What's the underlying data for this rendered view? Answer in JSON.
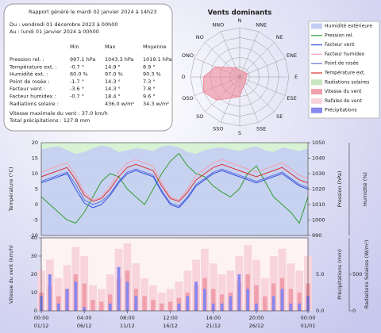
{
  "report": {
    "title": "Rapport généré le mardi 02 janvier 2024 à 14h23",
    "from": "Du : vendredi 01 décembre 2023 à 00h00",
    "to": "Au : lundi 01 janvier 2024 à 00h00",
    "columns": [
      "Min",
      "Max",
      "Moyenne"
    ],
    "rows": [
      [
        "Pression rel. :",
        "997.1 hPa",
        "1043.3 hPa",
        "1019.1 hPa"
      ],
      [
        "Température ext. :",
        "-0.7 °",
        "14.9 °",
        "8.9 °"
      ],
      [
        "Humidité ext. :",
        "60.0 %",
        "97.0 %",
        "90.3 %"
      ],
      [
        "Point de rosée :",
        "-1.7 °",
        "14.3 °",
        "7.3 °"
      ],
      [
        "Facteur vent :",
        "-3.6 °",
        "14.3 °",
        "7.8 °"
      ],
      [
        "Facteur humidex :",
        "-0.7 °",
        "18.4 °",
        "9.6 °"
      ],
      [
        "Radiations solaire :",
        null,
        "436.0 w/m²",
        "34.3 w/m²"
      ]
    ],
    "wind_max": "Vitesse maximale du vent : 37.0 km/h",
    "rain_total": "Total précipitations : 127.8 mm"
  },
  "chart_data": [
    {
      "type": "radar",
      "title": "Vents dominants",
      "categories": [
        "N",
        "NNE",
        "NE",
        "ENE",
        "E",
        "ESE",
        "SE",
        "SSE",
        "S",
        "SSO",
        "SO",
        "OSO",
        "O",
        "ONO",
        "NO",
        "NNO"
      ],
      "values": [
        2,
        2,
        2,
        2.5,
        2,
        2,
        2.5,
        3,
        6,
        7,
        10,
        12,
        11,
        8,
        4,
        3
      ],
      "color": "#f08090",
      "rlim": [
        0,
        15
      ],
      "rticks": [
        0,
        3,
        6,
        9,
        12,
        15
      ]
    },
    {
      "type": "line",
      "ylabel": "Température (°C)",
      "y2label": "Pression (hPa)",
      "y3label": "Humidité (%)",
      "ylim": [
        -10,
        20
      ],
      "yticks": [
        -10,
        -5,
        0,
        5,
        10,
        15,
        20
      ],
      "y2lim": [
        990,
        1050
      ],
      "y2ticks": [
        990,
        1000,
        1010,
        1020,
        1030,
        1040,
        1050
      ],
      "y3lim": [
        0,
        100
      ],
      "grid": true,
      "series": [
        {
          "name": "Humidité extérieure",
          "color": "#c4ccf4",
          "style": "area",
          "axis": "y3",
          "values": [
            93,
            95,
            96,
            92,
            88,
            90,
            94,
            97,
            95,
            90,
            92,
            94,
            93,
            91,
            96,
            97,
            95,
            90,
            88,
            92,
            94,
            95,
            93,
            91,
            94,
            96,
            92,
            90,
            95,
            93,
            91,
            94
          ]
        },
        {
          "name": "Pression rel.",
          "color": "#30a030",
          "axis": "y2",
          "values": [
            1015,
            1010,
            1005,
            1000,
            998,
            1005,
            1015,
            1025,
            1030,
            1028,
            1020,
            1015,
            1010,
            1020,
            1030,
            1038,
            1043,
            1035,
            1030,
            1028,
            1022,
            1018,
            1015,
            1020,
            1030,
            1035,
            1025,
            1015,
            1010,
            1005,
            998,
            1015
          ]
        },
        {
          "name": "Facteur vent",
          "color": "#3050e0",
          "values": [
            7,
            8,
            9,
            10,
            5,
            0.5,
            -1,
            0,
            3,
            7,
            10,
            11,
            10,
            9,
            4,
            0,
            -1,
            2,
            6,
            8,
            10,
            11,
            10,
            9,
            8,
            7,
            8,
            9,
            10,
            8,
            6,
            5
          ]
        },
        {
          "name": "Facteur humidex",
          "color": "#f4a0b0",
          "values": [
            10.5,
            11.5,
            12.5,
            13.5,
            9.5,
            4,
            1.5,
            2.5,
            6,
            10.5,
            13.5,
            14.5,
            13.5,
            12.5,
            7,
            2.5,
            1.5,
            5,
            9.5,
            11.5,
            13.5,
            14.5,
            13.5,
            12.5,
            11.5,
            10.5,
            11.5,
            12.5,
            13.5,
            11.5,
            9.5,
            8.5
          ]
        },
        {
          "name": "Point de rosée",
          "color": "#6070d8",
          "values": [
            7.5,
            8.5,
            9.5,
            10.5,
            6.5,
            1.5,
            0,
            1,
            3.5,
            7.5,
            10.5,
            11.5,
            10.5,
            9.5,
            4.5,
            0.5,
            -0.5,
            2.5,
            6.5,
            8.5,
            10.5,
            11.5,
            10.5,
            9.5,
            8.5,
            7.5,
            8.5,
            9.5,
            10.5,
            8.5,
            6.5,
            5.5
          ]
        },
        {
          "name": "Température ext.",
          "color": "#e03030",
          "values": [
            9,
            10,
            11,
            12,
            8,
            3,
            1,
            2,
            5,
            9,
            12,
            13,
            12,
            11,
            6,
            2,
            1,
            4,
            8,
            10,
            12,
            13,
            12,
            11,
            10,
            9,
            10,
            11,
            12,
            10,
            8,
            7
          ]
        }
      ]
    },
    {
      "type": "bar",
      "categories": [
        "01/12",
        null,
        null,
        null,
        null,
        "06/12",
        null,
        null,
        null,
        null,
        "11/12",
        null,
        null,
        null,
        null,
        "16/12",
        null,
        null,
        null,
        null,
        "21/12",
        null,
        null,
        null,
        null,
        "26/12",
        null,
        null,
        null,
        null,
        null,
        "01/01"
      ],
      "time_labels": [
        "00:00",
        "04:00",
        "08:00",
        "12:00",
        "16:00",
        "20:00",
        "00:00"
      ],
      "ylabel": "Vitesse du vent (km/h)",
      "y2label": "Précipitations (mm)",
      "y3label": "Radiations Solaires (W/m²)",
      "ylim": [
        0,
        40
      ],
      "yticks": [
        0,
        10,
        20,
        30,
        40
      ],
      "y2lim": [
        0,
        10
      ],
      "y2ticks": [
        {
          "value": 0,
          "label": "0.0"
        },
        {
          "value": 5,
          "label": "5.0"
        }
      ],
      "y3lim": [
        0,
        1000
      ],
      "y3ticks": [
        0,
        500
      ],
      "series": [
        {
          "name": "Radiations solaires",
          "color": "#c8e6c0",
          "axis": "y3",
          "values": [
            50,
            40,
            60,
            30,
            20,
            80,
            120,
            150,
            60,
            20,
            30,
            40,
            100,
            140,
            160,
            130,
            80,
            50,
            20,
            30,
            60,
            40,
            30,
            20,
            40,
            60,
            120,
            30,
            20,
            40,
            50,
            30
          ]
        },
        {
          "name": "Vitesse du vent",
          "color": "#f0a0ac",
          "values": [
            10,
            14,
            8,
            12,
            20,
            15,
            6,
            5,
            9,
            18,
            22,
            12,
            8,
            6,
            4,
            5,
            7,
            10,
            14,
            18,
            12,
            9,
            10,
            16,
            20,
            14,
            8,
            15,
            18,
            12,
            10,
            15
          ]
        },
        {
          "name": "Rafales de vent",
          "color": "#f8d4dc",
          "values": [
            22,
            28,
            18,
            25,
            35,
            30,
            14,
            12,
            20,
            34,
            37,
            26,
            18,
            14,
            10,
            12,
            16,
            22,
            28,
            34,
            26,
            20,
            22,
            30,
            36,
            28,
            18,
            30,
            34,
            26,
            22,
            30
          ]
        },
        {
          "name": "Précipitations",
          "color": "#8888f0",
          "axis": "y2",
          "values": [
            2,
            5,
            1,
            3,
            4,
            0.5,
            0,
            0,
            1,
            6,
            4,
            2,
            0,
            0,
            0,
            0,
            1,
            2,
            4,
            3,
            1,
            1,
            2,
            5,
            3,
            1,
            0,
            2,
            3,
            1,
            1,
            2
          ]
        }
      ]
    }
  ]
}
